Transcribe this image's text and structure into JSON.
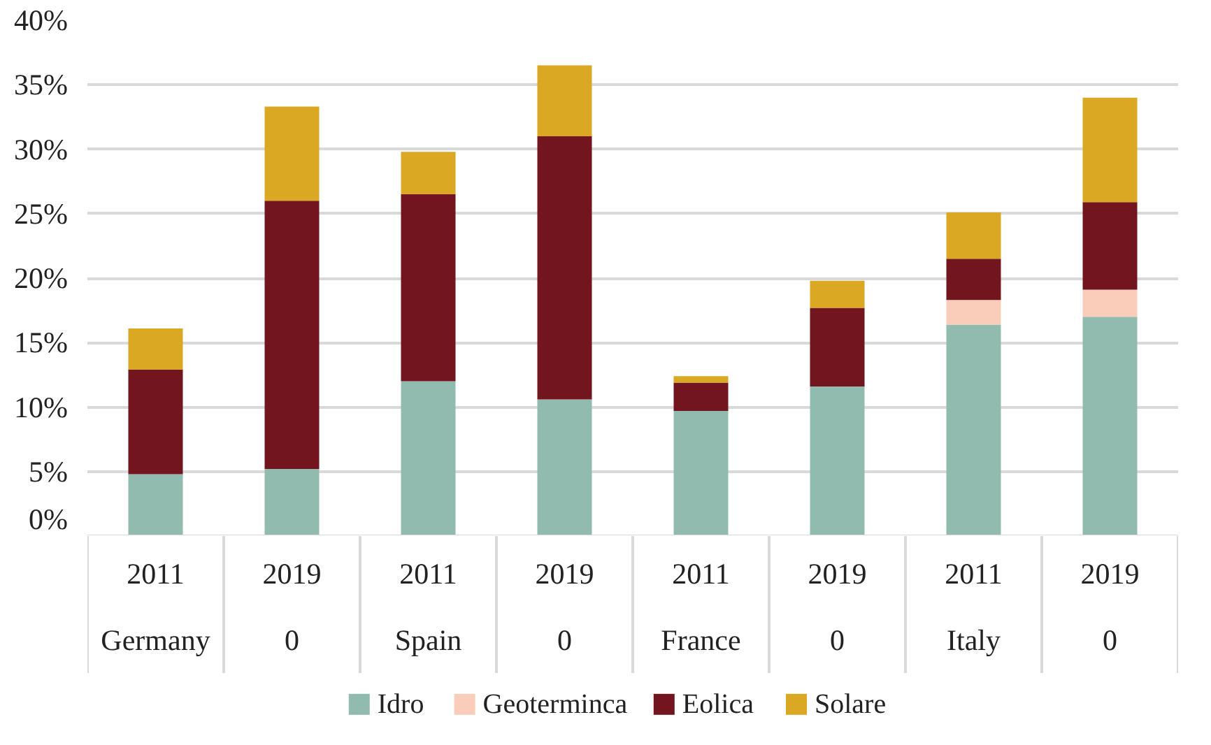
{
  "chart_data": {
    "type": "bar",
    "stacked": true,
    "categories": [
      "2011\nGermany",
      "2019\n0",
      "2011\nSpain",
      "2019\n0",
      "2011\nFrance",
      "2019\n0",
      "2011\nItaly",
      "2019\n0"
    ],
    "series": [
      {
        "name": "Idro",
        "color": "#92bbb0",
        "values": [
          4.8,
          5.2,
          12.0,
          10.6,
          9.7,
          11.6,
          16.4,
          17.0
        ]
      },
      {
        "name": "Geoterminca",
        "color": "#f9cdb9",
        "values": [
          0,
          0,
          0,
          0,
          0,
          0,
          1.9,
          2.1
        ]
      },
      {
        "name": "Eolica",
        "color": "#73151e",
        "values": [
          8.1,
          20.8,
          14.5,
          20.4,
          2.2,
          6.1,
          3.2,
          6.8
        ]
      },
      {
        "name": "Solare",
        "color": "#dba823",
        "values": [
          3.2,
          7.3,
          3.3,
          5.5,
          0.5,
          2.1,
          3.6,
          8.1
        ]
      }
    ],
    "ylim": [
      0,
      40
    ],
    "yticks": [
      {
        "value": 0,
        "label": "0%"
      },
      {
        "value": 5,
        "label": "5%"
      },
      {
        "value": 10,
        "label": "10%"
      },
      {
        "value": 15,
        "label": "15%"
      },
      {
        "value": 20,
        "label": "20%"
      },
      {
        "value": 25,
        "label": "25%"
      },
      {
        "value": 30,
        "label": "30%"
      },
      {
        "value": 35,
        "label": "35%"
      },
      {
        "value": 40,
        "label": "40%"
      }
    ],
    "grid": "y",
    "legend": "bottom"
  }
}
